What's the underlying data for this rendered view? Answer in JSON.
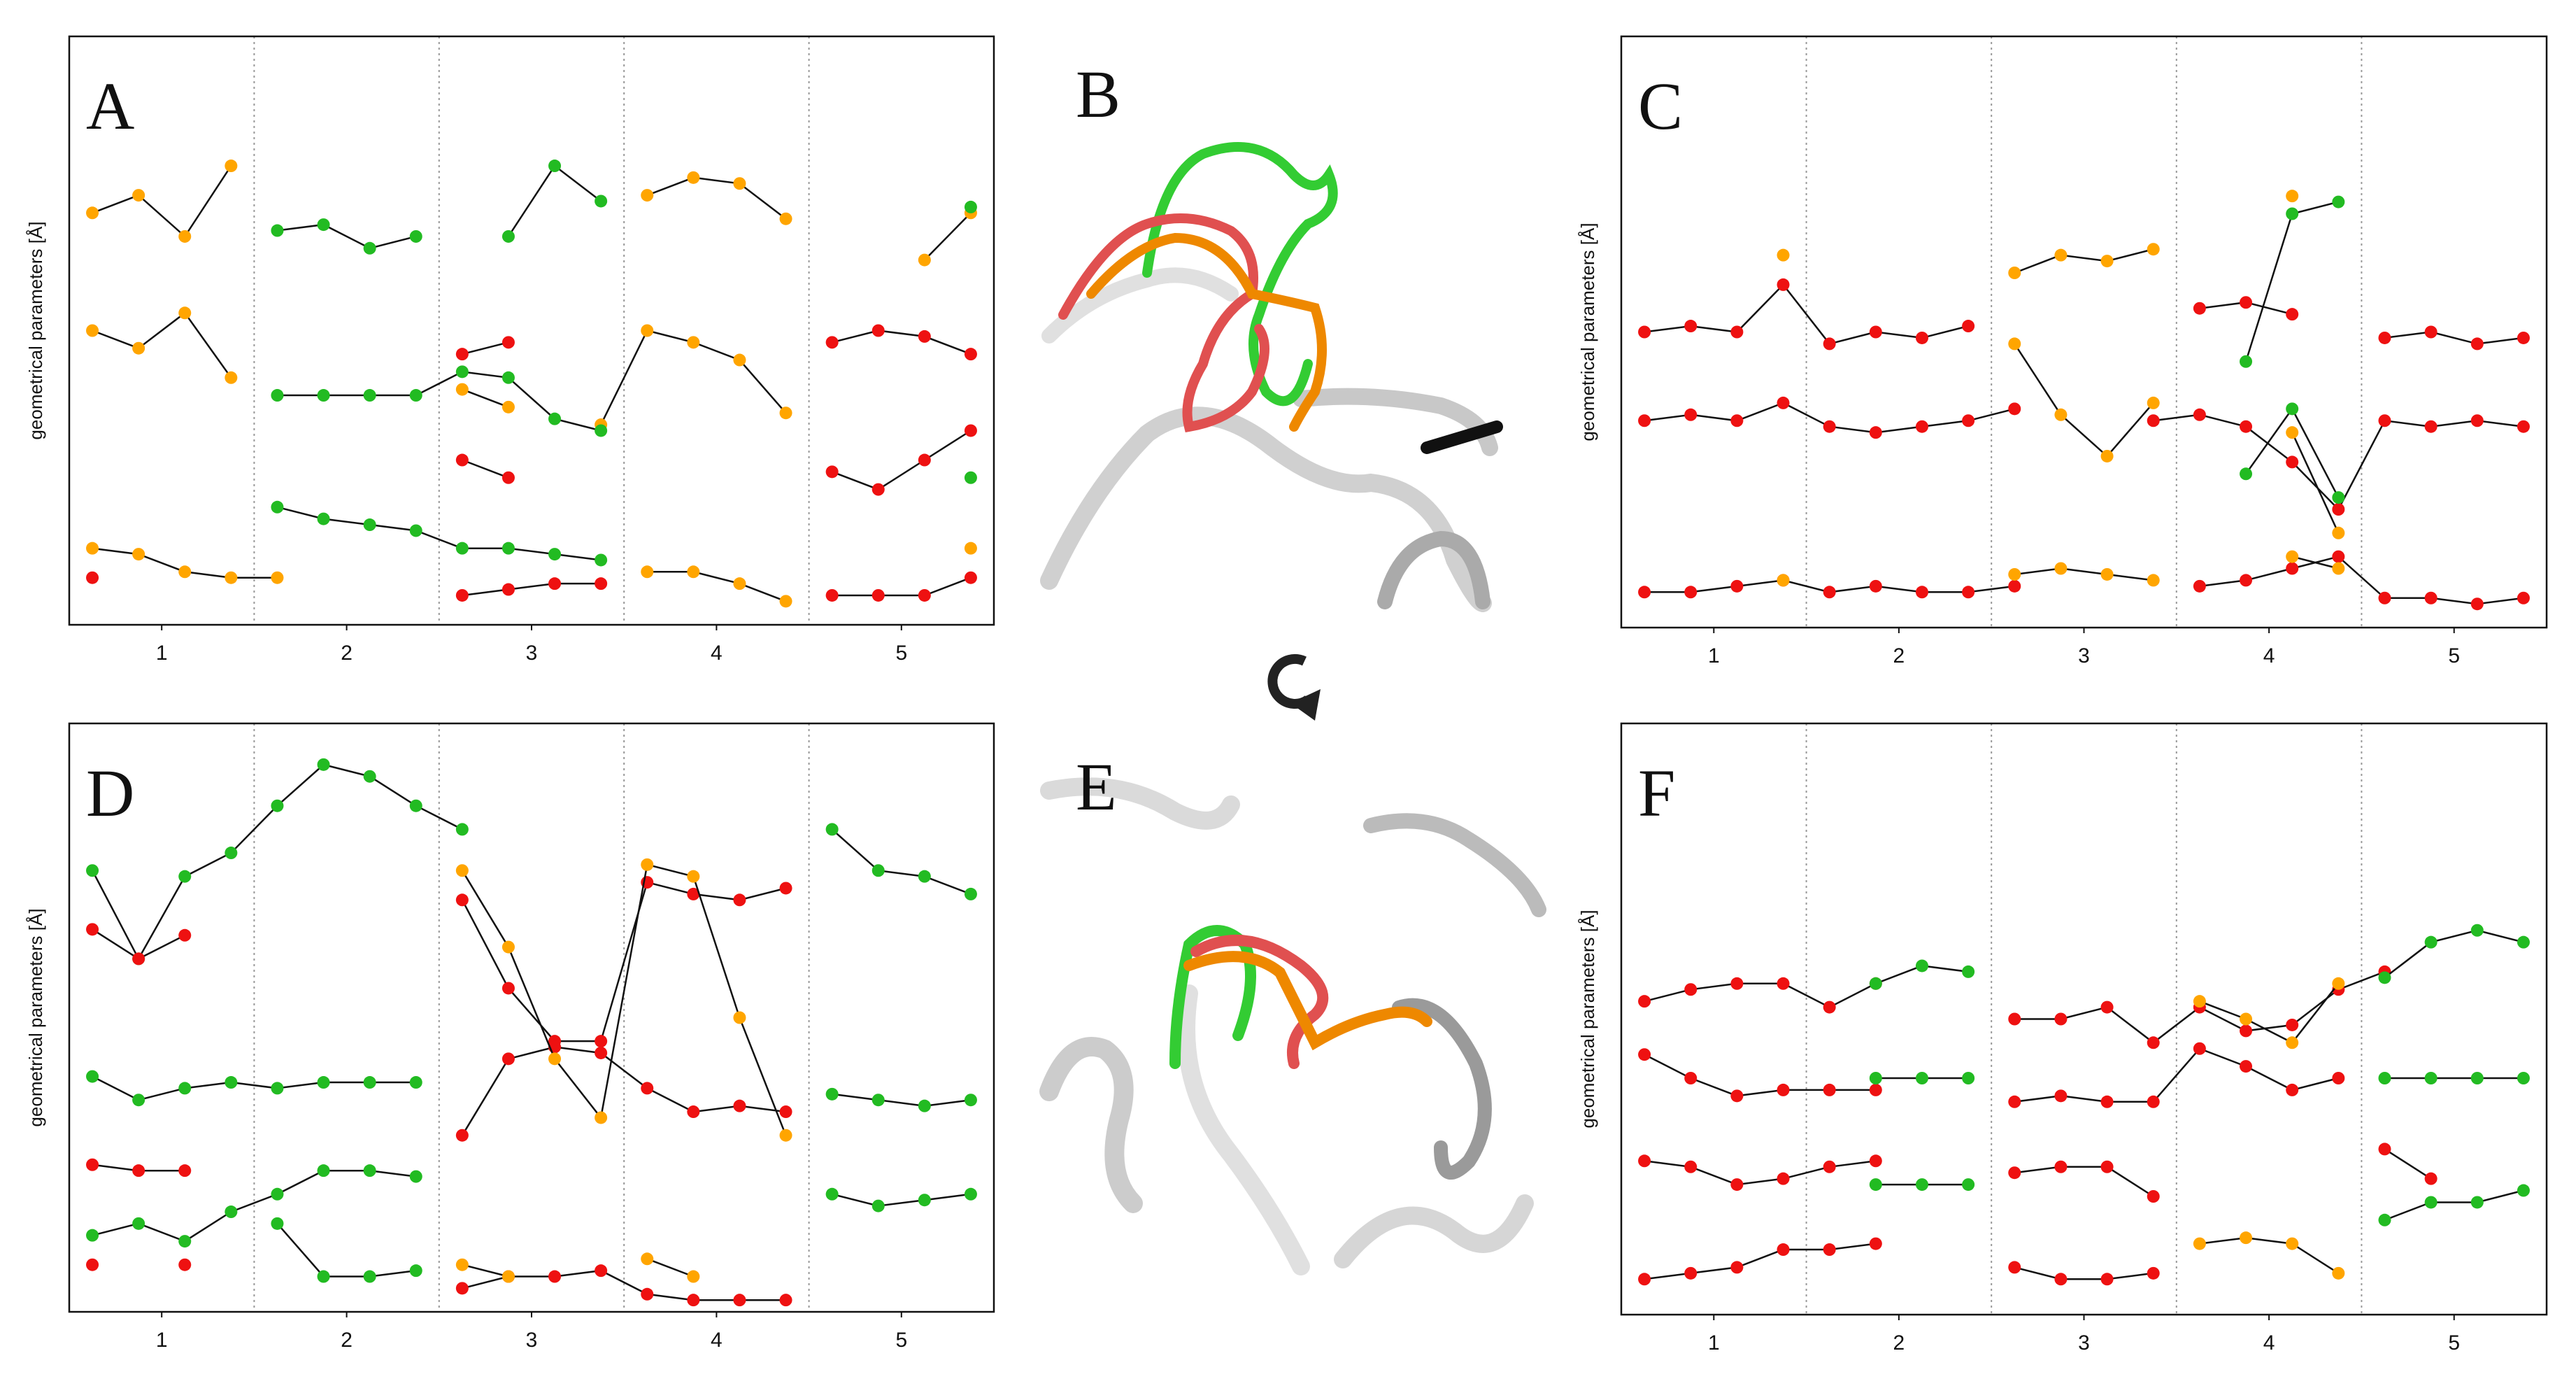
{
  "chart_data": [
    {
      "type": "scatter",
      "label": "A",
      "ylabel": "geometrical parameters [Å]",
      "x": [
        0.125,
        0.375,
        0.625,
        0.875,
        1.125,
        1.375,
        1.625,
        1.875,
        2.125,
        2.375,
        2.625,
        2.875,
        3.125,
        3.375,
        3.625,
        3.875,
        4.125,
        4.375,
        4.625,
        4.875
      ],
      "xlim": [
        0,
        5
      ],
      "ylim": [
        0,
        10
      ],
      "xticks": [
        {
          "value": 0.5,
          "label": "1"
        },
        {
          "value": 1.5,
          "label": "2"
        },
        {
          "value": 2.5,
          "label": "3"
        },
        {
          "value": 3.5,
          "label": "4"
        },
        {
          "value": 4.5,
          "label": "5"
        }
      ],
      "xgrid": [
        1,
        2,
        3,
        4
      ],
      "series": [
        {
          "color": "#ffa500",
          "values": [
            7.0,
            7.3,
            6.6,
            7.8,
            null,
            null,
            null,
            null,
            null,
            null,
            null,
            null,
            7.3,
            7.6,
            7.5,
            6.9,
            null,
            null,
            6.2,
            7.0
          ]
        },
        {
          "color": "#ffa500",
          "values": [
            5.0,
            4.7,
            5.3,
            4.2,
            null,
            null,
            null,
            null,
            4.0,
            3.7,
            null,
            3.4,
            5.0,
            4.8,
            4.5,
            3.6,
            null,
            null,
            null,
            null
          ]
        },
        {
          "color": "#ffa500",
          "values": [
            1.3,
            1.2,
            0.9,
            0.8,
            0.8,
            null,
            null,
            null,
            null,
            null,
            null,
            null,
            0.9,
            0.9,
            0.7,
            0.4,
            null,
            null,
            null,
            1.3
          ]
        },
        {
          "color": "#22bb22",
          "values": [
            null,
            null,
            null,
            null,
            6.7,
            6.8,
            6.4,
            6.6,
            null,
            6.6,
            7.8,
            7.2,
            null,
            null,
            null,
            null,
            null,
            null,
            null,
            7.1
          ]
        },
        {
          "color": "#22bb22",
          "values": [
            null,
            null,
            null,
            null,
            3.9,
            3.9,
            3.9,
            3.9,
            4.3,
            4.2,
            3.5,
            3.3,
            null,
            null,
            null,
            null,
            null,
            null,
            null,
            null
          ]
        },
        {
          "color": "#22bb22",
          "values": [
            null,
            null,
            null,
            null,
            2.0,
            1.8,
            1.7,
            1.6,
            1.3,
            1.3,
            1.2,
            1.1,
            null,
            null,
            null,
            null,
            null,
            null,
            null,
            2.5
          ]
        },
        {
          "color": "#ee1111",
          "values": [
            null,
            null,
            null,
            null,
            null,
            null,
            null,
            null,
            4.6,
            4.8,
            null,
            null,
            null,
            null,
            null,
            null,
            4.8,
            5.0,
            4.9,
            4.6
          ]
        },
        {
          "color": "#ee1111",
          "values": [
            null,
            null,
            null,
            null,
            null,
            null,
            null,
            null,
            2.8,
            2.5,
            null,
            null,
            null,
            null,
            null,
            null,
            2.6,
            2.3,
            2.8,
            3.3
          ]
        },
        {
          "color": "#ee1111",
          "values": [
            0.8,
            null,
            null,
            null,
            null,
            null,
            null,
            null,
            0.5,
            0.6,
            0.7,
            0.7,
            null,
            null,
            null,
            null,
            0.5,
            0.5,
            0.5,
            0.8
          ]
        }
      ]
    },
    {
      "type": "scatter",
      "label": "C",
      "ylabel": "geometrical parameters [Å]",
      "x": [
        0.125,
        0.375,
        0.625,
        0.875,
        1.125,
        1.375,
        1.625,
        1.875,
        2.125,
        2.375,
        2.625,
        2.875,
        3.125,
        3.375,
        3.625,
        3.875,
        4.125,
        4.375,
        4.625,
        4.875
      ],
      "xlim": [
        0,
        5
      ],
      "ylim": [
        0,
        10
      ],
      "xticks": [
        {
          "value": 0.5,
          "label": "1"
        },
        {
          "value": 1.5,
          "label": "2"
        },
        {
          "value": 2.5,
          "label": "3"
        },
        {
          "value": 3.5,
          "label": "4"
        },
        {
          "value": 4.5,
          "label": "5"
        }
      ],
      "xgrid": [
        1,
        2,
        3,
        4
      ],
      "series": [
        {
          "color": "#ee1111",
          "values": [
            5.0,
            5.1,
            5.0,
            5.8,
            4.8,
            5.0,
            4.9,
            5.1,
            null,
            null,
            null,
            null,
            5.4,
            5.5,
            5.3,
            null,
            4.9,
            5.0,
            4.8,
            4.9
          ]
        },
        {
          "color": "#ee1111",
          "values": [
            3.5,
            3.6,
            3.5,
            3.8,
            3.4,
            3.3,
            3.4,
            3.5,
            3.7,
            null,
            null,
            3.5,
            3.6,
            3.4,
            2.8,
            2.0,
            3.5,
            3.4,
            3.5,
            3.4
          ]
        },
        {
          "color": "#ee1111",
          "values": [
            0.6,
            0.6,
            0.7,
            0.8,
            0.6,
            0.7,
            0.6,
            0.6,
            0.7,
            null,
            null,
            null,
            0.7,
            0.8,
            1.0,
            1.2,
            0.5,
            0.5,
            0.4,
            0.5
          ]
        },
        {
          "color": "#ffa500",
          "values": [
            null,
            null,
            null,
            6.3,
            null,
            null,
            null,
            null,
            6.0,
            6.3,
            6.2,
            6.4,
            null,
            null,
            7.3,
            null,
            null,
            null,
            null,
            null
          ]
        },
        {
          "color": "#ffa500",
          "values": [
            null,
            null,
            null,
            null,
            null,
            null,
            null,
            null,
            4.8,
            3.6,
            2.9,
            3.8,
            null,
            null,
            3.3,
            1.6,
            null,
            null,
            null,
            null
          ]
        },
        {
          "color": "#ffa500",
          "values": [
            null,
            null,
            null,
            0.8,
            null,
            null,
            null,
            null,
            0.9,
            1.0,
            0.9,
            0.8,
            null,
            null,
            1.2,
            1.0,
            null,
            null,
            null,
            null
          ]
        },
        {
          "color": "#22bb22",
          "values": [
            null,
            null,
            null,
            null,
            null,
            null,
            null,
            null,
            null,
            null,
            null,
            null,
            null,
            4.5,
            7.0,
            7.2,
            null,
            null,
            null,
            null
          ]
        },
        {
          "color": "#22bb22",
          "values": [
            null,
            null,
            null,
            null,
            null,
            null,
            null,
            null,
            null,
            null,
            null,
            null,
            null,
            2.6,
            3.7,
            2.2,
            null,
            null,
            null,
            null
          ]
        }
      ]
    },
    {
      "type": "scatter",
      "label": "D",
      "ylabel": "geometrical parameters [Å]",
      "x": [
        0.125,
        0.375,
        0.625,
        0.875,
        1.125,
        1.375,
        1.625,
        1.875,
        2.125,
        2.375,
        2.625,
        2.875,
        3.125,
        3.375,
        3.625,
        3.875,
        4.125,
        4.375,
        4.625,
        4.875
      ],
      "xlim": [
        0,
        5
      ],
      "ylim": [
        0,
        10
      ],
      "xticks": [
        {
          "value": 0.5,
          "label": "1"
        },
        {
          "value": 1.5,
          "label": "2"
        },
        {
          "value": 2.5,
          "label": "3"
        },
        {
          "value": 3.5,
          "label": "4"
        },
        {
          "value": 4.5,
          "label": "5"
        }
      ],
      "xgrid": [
        1,
        2,
        3,
        4
      ],
      "series": [
        {
          "color": "#22bb22",
          "values": [
            7.5,
            6.0,
            7.4,
            7.8,
            8.6,
            9.3,
            9.1,
            8.6,
            8.2,
            null,
            null,
            null,
            null,
            null,
            null,
            null,
            8.2,
            7.5,
            7.4,
            7.1
          ]
        },
        {
          "color": "#22bb22",
          "values": [
            4.0,
            3.6,
            3.8,
            3.9,
            3.8,
            3.9,
            3.9,
            3.9,
            null,
            null,
            null,
            null,
            null,
            null,
            null,
            null,
            3.7,
            3.6,
            3.5,
            3.6
          ]
        },
        {
          "color": "#22bb22",
          "values": [
            1.3,
            1.5,
            1.2,
            1.7,
            2.0,
            2.4,
            2.4,
            2.3,
            null,
            null,
            null,
            null,
            null,
            null,
            null,
            null,
            2.0,
            1.8,
            1.9,
            2.0
          ]
        },
        {
          "color": "#22bb22",
          "values": [
            null,
            null,
            null,
            null,
            1.5,
            0.6,
            0.6,
            0.7,
            null,
            null,
            null,
            null,
            null,
            null,
            null,
            null,
            null,
            null,
            null,
            null
          ]
        },
        {
          "color": "#ee1111",
          "values": [
            6.5,
            6.0,
            6.4,
            null,
            null,
            null,
            null,
            null,
            7.0,
            5.5,
            4.6,
            4.6,
            7.3,
            7.1,
            7.0,
            7.2,
            null,
            null,
            null,
            null
          ]
        },
        {
          "color": "#ee1111",
          "values": [
            2.5,
            2.4,
            2.4,
            null,
            null,
            null,
            null,
            null,
            3.0,
            4.3,
            4.5,
            4.4,
            3.8,
            3.4,
            3.5,
            3.4,
            null,
            null,
            null,
            null
          ]
        },
        {
          "color": "#ee1111",
          "values": [
            0.8,
            null,
            0.8,
            null,
            null,
            null,
            null,
            null,
            0.4,
            0.6,
            0.6,
            0.7,
            0.3,
            0.2,
            0.2,
            0.2,
            null,
            null,
            null,
            null
          ]
        },
        {
          "color": "#ffa500",
          "values": [
            null,
            null,
            null,
            null,
            null,
            null,
            null,
            null,
            7.5,
            6.2,
            4.3,
            3.3,
            7.6,
            7.4,
            5.0,
            3.0,
            null,
            null,
            null,
            null
          ]
        },
        {
          "color": "#ffa500",
          "values": [
            null,
            null,
            null,
            null,
            null,
            null,
            null,
            null,
            0.8,
            0.6,
            null,
            null,
            0.9,
            0.6,
            null,
            null,
            null,
            null,
            null,
            null
          ]
        }
      ]
    },
    {
      "type": "scatter",
      "label": "F",
      "ylabel": "geometrical parameters [Å]",
      "x": [
        0.125,
        0.375,
        0.625,
        0.875,
        1.125,
        1.375,
        1.625,
        1.875,
        2.125,
        2.375,
        2.625,
        2.875,
        3.125,
        3.375,
        3.625,
        3.875,
        4.125,
        4.375,
        4.625,
        4.875
      ],
      "xlim": [
        0,
        5
      ],
      "ylim": [
        0,
        10
      ],
      "xticks": [
        {
          "value": 0.5,
          "label": "1"
        },
        {
          "value": 1.5,
          "label": "2"
        },
        {
          "value": 2.5,
          "label": "3"
        },
        {
          "value": 3.5,
          "label": "4"
        },
        {
          "value": 4.5,
          "label": "5"
        }
      ],
      "xgrid": [
        1,
        2,
        3,
        4
      ],
      "series": [
        {
          "color": "#ee1111",
          "values": [
            5.3,
            5.5,
            5.6,
            5.6,
            5.2,
            5.6,
            null,
            null,
            5.0,
            5.0,
            5.2,
            4.6,
            5.2,
            4.8,
            4.9,
            5.5,
            5.8,
            null,
            null,
            null
          ]
        },
        {
          "color": "#ee1111",
          "values": [
            4.4,
            4.0,
            3.7,
            3.8,
            3.8,
            3.8,
            null,
            null,
            3.6,
            3.7,
            3.6,
            3.6,
            4.5,
            4.2,
            3.8,
            4.0,
            null,
            null,
            null,
            null
          ]
        },
        {
          "color": "#ee1111",
          "values": [
            2.6,
            2.5,
            2.2,
            2.3,
            2.5,
            2.6,
            null,
            null,
            2.4,
            2.5,
            2.5,
            2.0,
            null,
            null,
            null,
            null,
            2.8,
            2.3,
            null,
            null
          ]
        },
        {
          "color": "#ee1111",
          "values": [
            0.6,
            0.7,
            0.8,
            1.1,
            1.1,
            1.2,
            null,
            null,
            0.8,
            0.6,
            0.6,
            0.7,
            null,
            null,
            null,
            null,
            null,
            null,
            null,
            null
          ]
        },
        {
          "color": "#22bb22",
          "values": [
            null,
            null,
            null,
            null,
            null,
            5.6,
            5.9,
            5.8,
            null,
            null,
            null,
            null,
            null,
            null,
            null,
            null,
            5.7,
            6.3,
            6.5,
            6.3
          ]
        },
        {
          "color": "#22bb22",
          "values": [
            null,
            null,
            null,
            null,
            null,
            4.0,
            4.0,
            4.0,
            null,
            null,
            null,
            null,
            null,
            null,
            null,
            null,
            4.0,
            4.0,
            4.0,
            4.0
          ]
        },
        {
          "color": "#22bb22",
          "values": [
            null,
            null,
            null,
            null,
            null,
            2.2,
            2.2,
            2.2,
            null,
            null,
            null,
            null,
            null,
            null,
            null,
            null,
            1.6,
            1.9,
            1.9,
            2.1
          ]
        },
        {
          "color": "#ffa500",
          "values": [
            null,
            null,
            null,
            null,
            null,
            null,
            null,
            null,
            null,
            null,
            null,
            null,
            5.3,
            5.0,
            4.6,
            5.6,
            null,
            null,
            null,
            null
          ]
        },
        {
          "color": "#ffa500",
          "values": [
            null,
            null,
            null,
            null,
            null,
            null,
            null,
            null,
            null,
            null,
            null,
            null,
            1.2,
            1.3,
            1.2,
            0.7,
            null,
            null,
            null,
            null
          ]
        }
      ]
    }
  ],
  "images": [
    {
      "label": "B"
    },
    {
      "label": "E"
    }
  ]
}
